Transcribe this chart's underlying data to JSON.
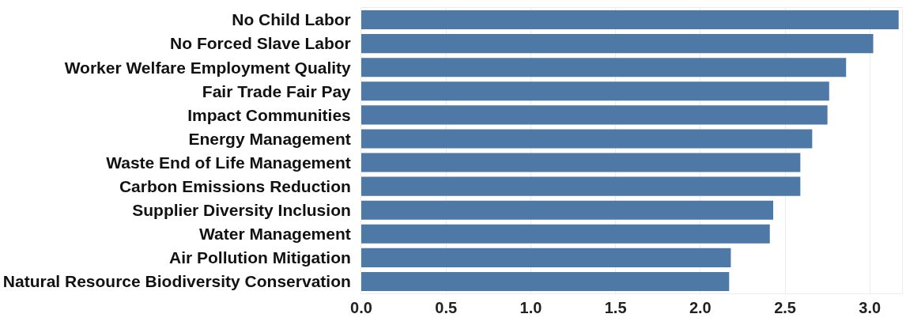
{
  "chart_data": {
    "type": "bar",
    "orientation": "horizontal",
    "categories": [
      "No Child Labor",
      "No Forced Slave Labor",
      "Worker Welfare Employment Quality",
      "Fair Trade Fair Pay",
      "Impact Communities",
      "Energy Management",
      "Waste End of Life Management",
      "Carbon Emissions Reduction",
      "Supplier Diversity Inclusion",
      "Water Management",
      "Air Pollution Mitigation",
      "Natural Resource Biodiversity Conservation"
    ],
    "values": [
      3.17,
      3.02,
      2.86,
      2.76,
      2.75,
      2.66,
      2.59,
      2.59,
      2.43,
      2.41,
      2.18,
      2.17
    ],
    "color": "#4e79a7",
    "xlim": [
      0,
      3.19
    ],
    "xticks": [
      {
        "value": 0,
        "label": "0.0"
      },
      {
        "value": 0.5,
        "label": "0.5"
      },
      {
        "value": 1,
        "label": "1.0"
      },
      {
        "value": 1.5,
        "label": "1.5"
      },
      {
        "value": 2,
        "label": "2.0"
      },
      {
        "value": 2.5,
        "label": "2.5"
      },
      {
        "value": 3,
        "label": "3.0"
      }
    ],
    "grid": "x"
  }
}
